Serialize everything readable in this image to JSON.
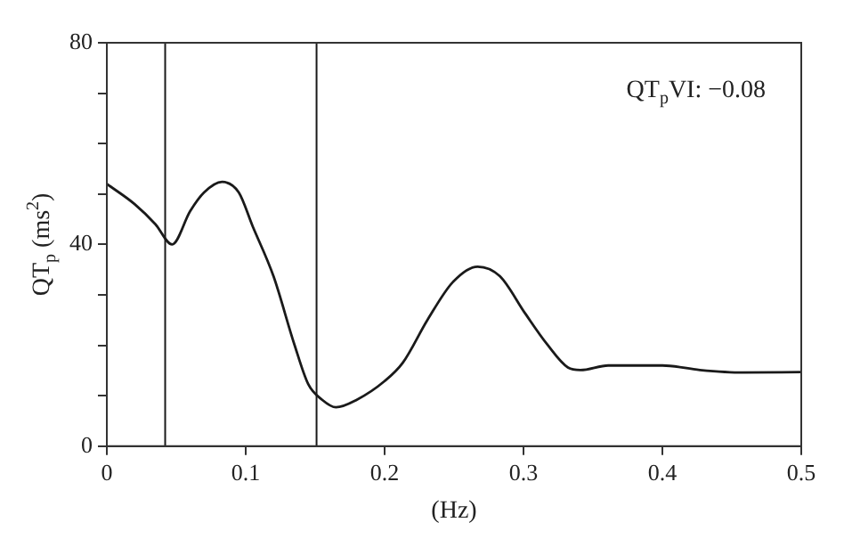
{
  "chart_data": {
    "type": "line",
    "xlabel": "(Hz)",
    "ylabel": "QT$_{p}$ (ms$^{2}$)",
    "annotations": [
      "QT$_{p}$VI: −0.08"
    ],
    "x": [
      0,
      0.02,
      0.035,
      0.047,
      0.06,
      0.07,
      0.083,
      0.095,
      0.105,
      0.12,
      0.135,
      0.145,
      0.155,
      0.165,
      0.18,
      0.2,
      0.213,
      0.231,
      0.249,
      0.267,
      0.283,
      0.301,
      0.317,
      0.332,
      0.341,
      0.361,
      0.4,
      0.427,
      0.458,
      0.5
    ],
    "series": [
      {
        "color": "#1a1a1a",
        "values": [
          52,
          48,
          44,
          40,
          46.6,
          50.3,
          52.4,
          50.3,
          43.6,
          33.7,
          20.2,
          12.3,
          9.2,
          7.7,
          9.2,
          12.9,
          16.5,
          25.1,
          32.5,
          35.6,
          33.7,
          26.4,
          20.2,
          15.6,
          15.1,
          16,
          16,
          15.1,
          14.6,
          14.7
        ]
      }
    ],
    "xlim": [
      0,
      0.5
    ],
    "xticks": [
      0,
      0.1,
      0.2,
      0.3,
      0.4,
      0.5
    ],
    "ylim": [
      0,
      80
    ],
    "yticks": [
      0,
      {
        "value": 10,
        "label": null
      },
      {
        "value": 20,
        "label": null
      },
      {
        "value": 30,
        "label": null
      },
      40,
      {
        "value": 50,
        "label": null
      },
      {
        "value": 60,
        "label": null
      },
      {
        "value": 70,
        "label": null
      },
      80
    ],
    "ref_lines": [
      {
        "axis": "x",
        "value": 0.042,
        "color": "#1a1a1a"
      },
      {
        "axis": "x",
        "value": 0.151,
        "color": "#1a1a1a"
      }
    ],
    "grid": false,
    "legend": false,
    "marker": "none",
    "line_style": "solid"
  }
}
